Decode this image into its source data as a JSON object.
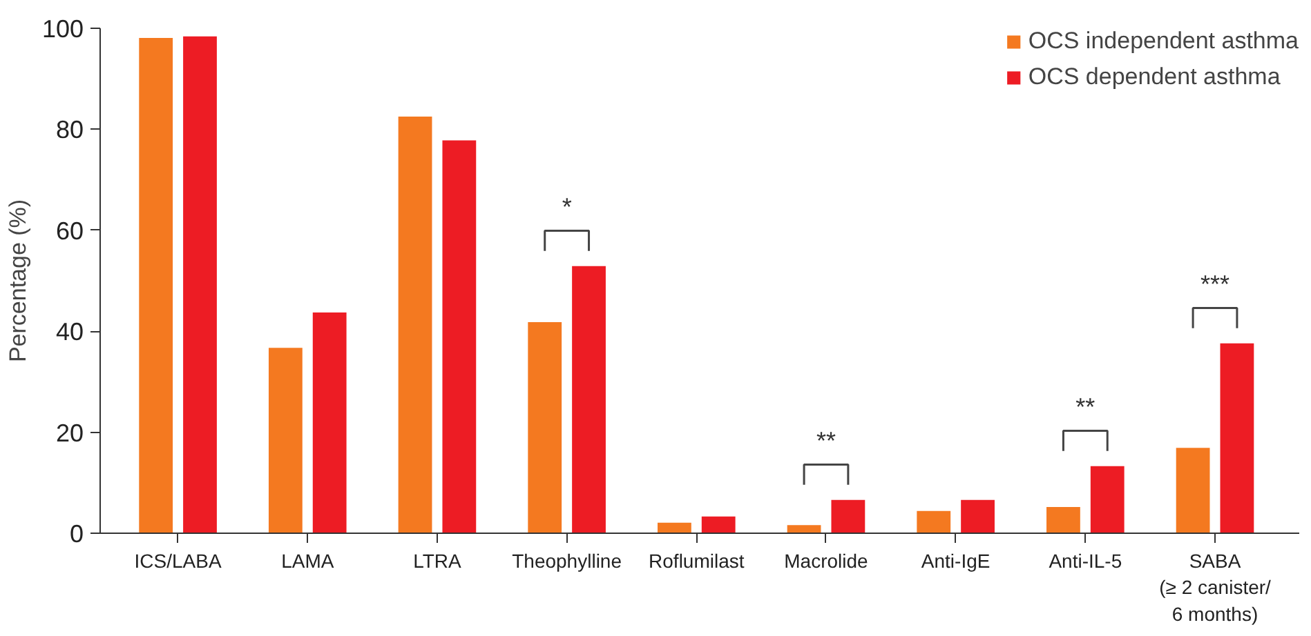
{
  "chart_data": {
    "type": "bar",
    "ylabel": "Percentage (%)",
    "categories": [
      "ICS/LABA",
      "LAMA",
      "LTRA",
      "Theophylline",
      "Roflumilast",
      "Macrolide",
      "Anti-IgE",
      "Anti-IL-5",
      "SABA\n(≥ 2 canister/\n6 months)"
    ],
    "series": [
      {
        "name": "OCS independent asthma",
        "color": "#f47920",
        "values": [
          98.1,
          36.7,
          82.5,
          41.8,
          2.1,
          1.6,
          4.4,
          5.2,
          16.9
        ]
      },
      {
        "name": "OCS dependent asthma",
        "color": "#ed1c24",
        "values": [
          98.4,
          43.7,
          77.8,
          52.9,
          3.3,
          6.6,
          6.6,
          13.3,
          37.6
        ]
      }
    ],
    "ylim": [
      0,
      100
    ],
    "yticks": [
      0,
      20,
      40,
      60,
      80,
      100
    ],
    "grid": false,
    "legend": "top right",
    "annotations": [
      "*",
      "**",
      "**",
      "***"
    ]
  }
}
